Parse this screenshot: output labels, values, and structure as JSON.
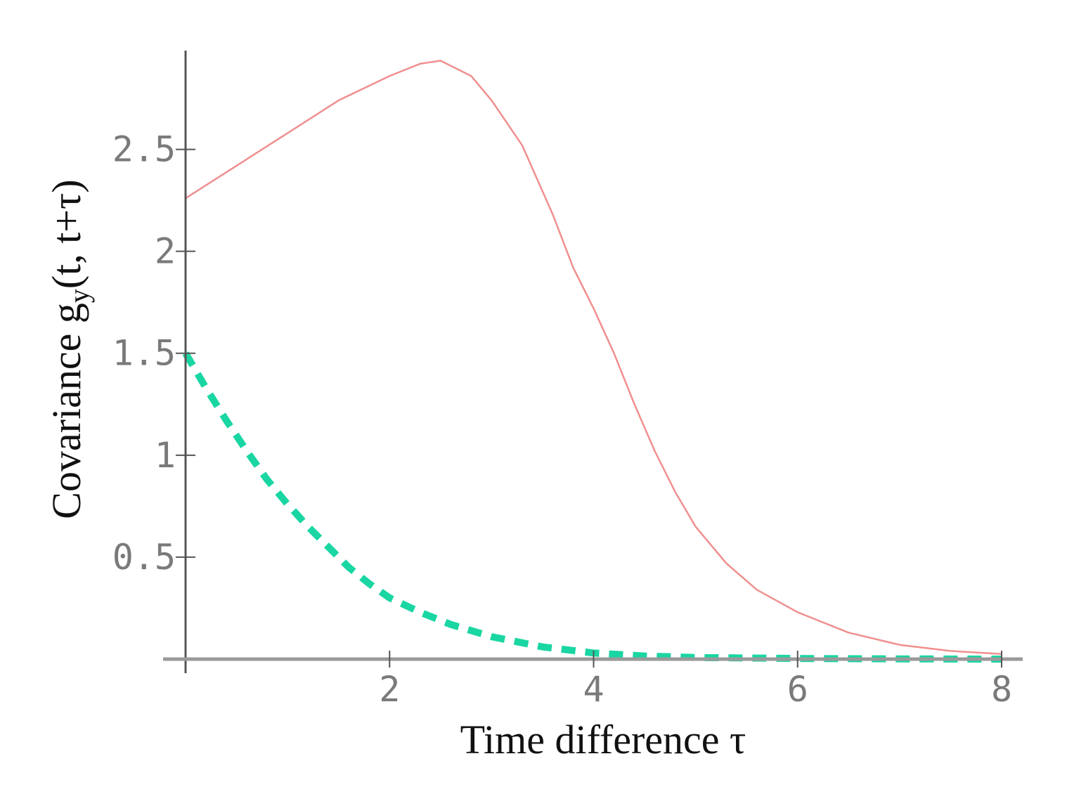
{
  "chart_data": {
    "type": "line",
    "xlabel": "Time difference τ",
    "ylabel": "Covariance gᵧ(t, t+τ)",
    "ylabel_parts": {
      "prefix": "Covariance  g",
      "sub": "y",
      "suffix": "(t, t+τ)"
    },
    "xlim": [
      0,
      8
    ],
    "ylim": [
      0,
      2.95
    ],
    "x_ticks": [
      2,
      4,
      6,
      8
    ],
    "x_tick_labels": [
      "2",
      "4",
      "6",
      "8"
    ],
    "y_ticks": [
      0.5,
      1,
      1.5,
      2,
      2.5
    ],
    "y_tick_labels": [
      "0.5",
      "1",
      "1.5",
      "2",
      "2.5"
    ],
    "grid": false,
    "legend": "none",
    "series": [
      {
        "color": "#f08f8f",
        "style": "solid",
        "points": [
          [
            0,
            2.26
          ],
          [
            0.5,
            2.42
          ],
          [
            1,
            2.58
          ],
          [
            1.5,
            2.74
          ],
          [
            2,
            2.86
          ],
          [
            2.3,
            2.92
          ],
          [
            2.5,
            2.935
          ],
          [
            2.8,
            2.86
          ],
          [
            3,
            2.74
          ],
          [
            3.3,
            2.52
          ],
          [
            3.6,
            2.18
          ],
          [
            3.8,
            1.92
          ],
          [
            4,
            1.72
          ],
          [
            4.2,
            1.5
          ],
          [
            4.4,
            1.25
          ],
          [
            4.6,
            1.02
          ],
          [
            4.8,
            0.82
          ],
          [
            5,
            0.65
          ],
          [
            5.3,
            0.47
          ],
          [
            5.6,
            0.34
          ],
          [
            6,
            0.23
          ],
          [
            6.5,
            0.13
          ],
          [
            7,
            0.07
          ],
          [
            7.5,
            0.04
          ],
          [
            8,
            0.025
          ]
        ]
      },
      {
        "color": "#19d6a2",
        "style": "dashed",
        "points": [
          [
            0,
            1.5
          ],
          [
            0.2,
            1.33
          ],
          [
            0.4,
            1.17
          ],
          [
            0.6,
            1.02
          ],
          [
            0.8,
            0.88
          ],
          [
            1,
            0.76
          ],
          [
            1.2,
            0.65
          ],
          [
            1.4,
            0.55
          ],
          [
            1.6,
            0.45
          ],
          [
            1.8,
            0.37
          ],
          [
            2,
            0.3
          ],
          [
            2.3,
            0.23
          ],
          [
            2.6,
            0.17
          ],
          [
            3,
            0.11
          ],
          [
            3.5,
            0.06
          ],
          [
            4,
            0.03
          ],
          [
            4.5,
            0.015
          ],
          [
            5,
            0.008
          ],
          [
            6,
            0.003
          ],
          [
            7,
            0.001
          ],
          [
            8,
            0.0
          ]
        ]
      }
    ]
  }
}
